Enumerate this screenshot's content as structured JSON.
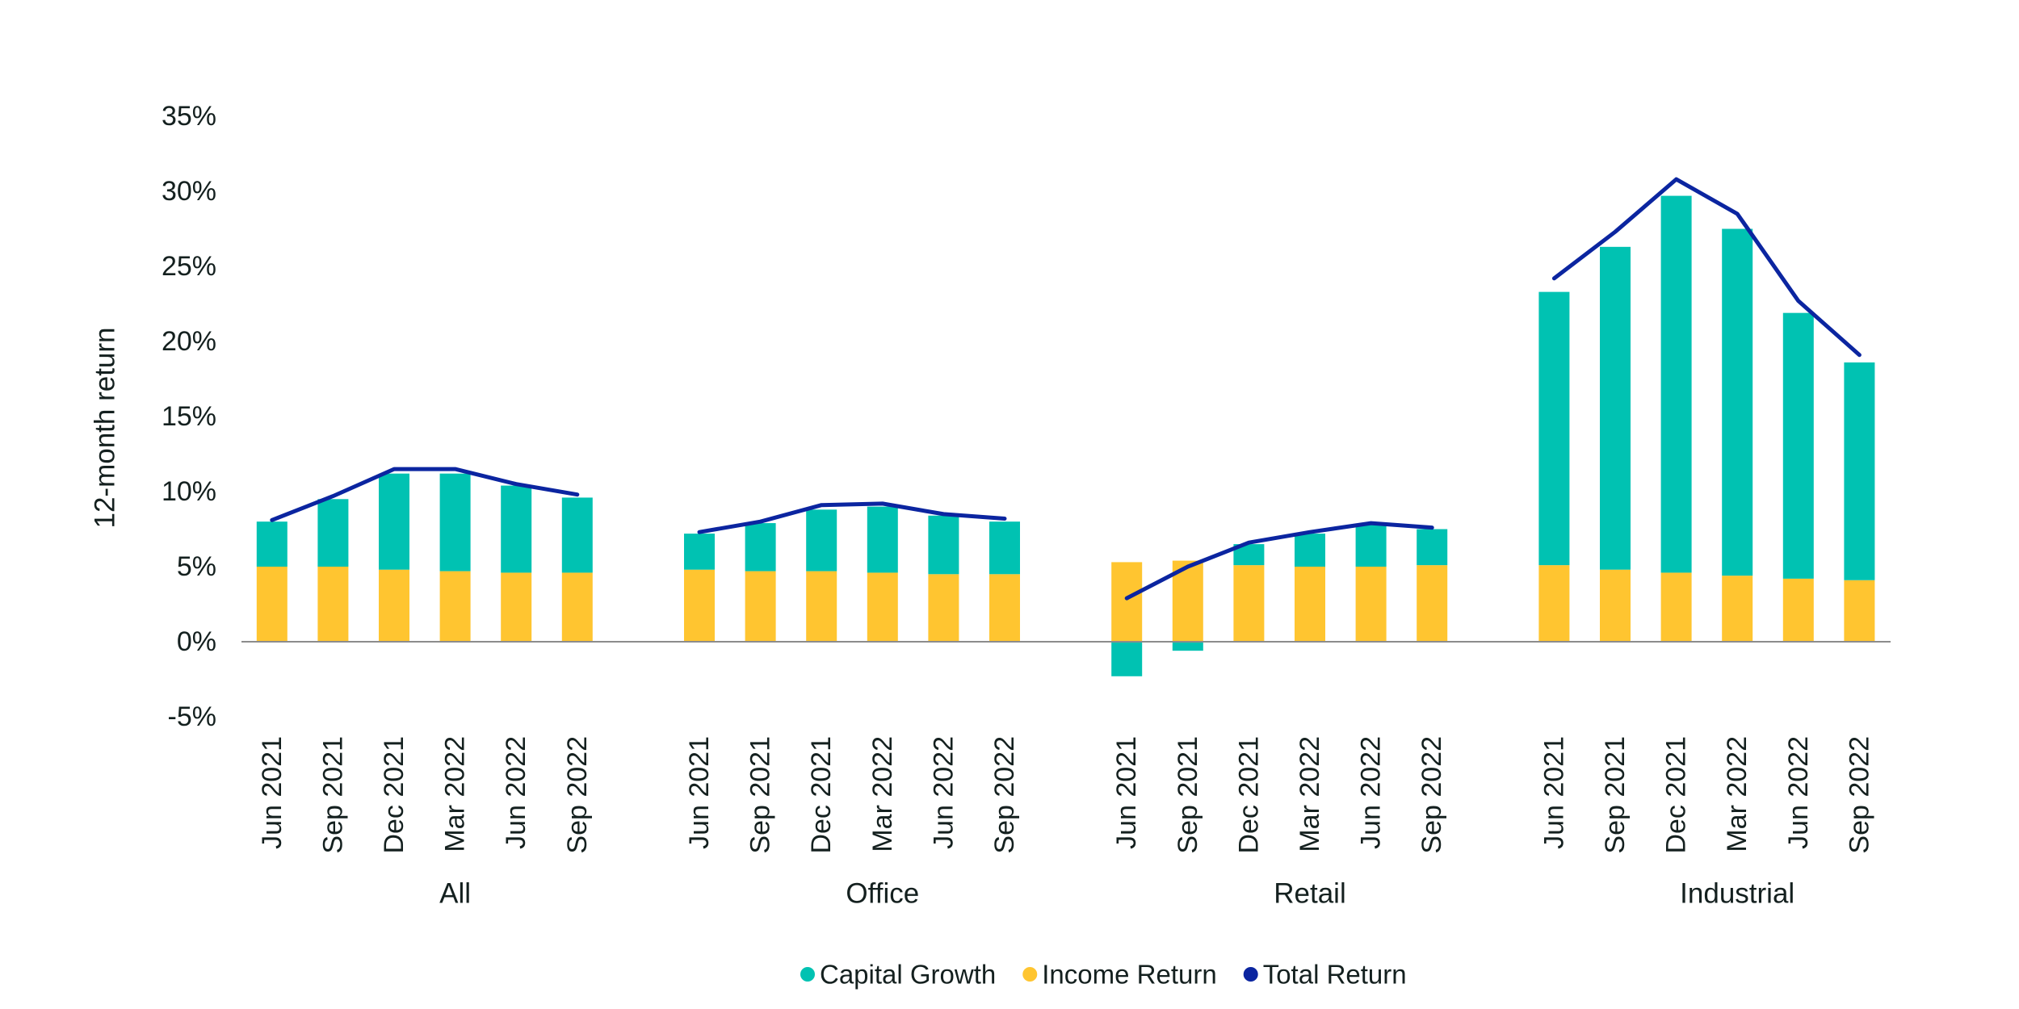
{
  "chart_data": {
    "type": "bar",
    "subtype": "stacked-bar-with-line",
    "title": "",
    "xlabel": "",
    "ylabel": "12-month return",
    "ylim": [
      -5,
      35
    ],
    "yticks": [
      -5,
      0,
      5,
      10,
      15,
      20,
      25,
      30,
      35
    ],
    "ytick_labels": [
      "-5%",
      "0%",
      "5%",
      "10%",
      "15%",
      "20%",
      "25%",
      "30%",
      "35%"
    ],
    "grid": false,
    "legend_position": "bottom-center",
    "groups": [
      {
        "name": "All",
        "categories": [
          "Jun 2021",
          "Sep 2021",
          "Dec 2021",
          "Mar 2022",
          "Jun 2022",
          "Sep 2022"
        ],
        "capital_growth": [
          3.0,
          4.5,
          6.4,
          6.5,
          5.8,
          5.0
        ],
        "income_return": [
          5.0,
          5.0,
          4.8,
          4.7,
          4.6,
          4.6
        ],
        "total_return": [
          8.1,
          9.7,
          11.5,
          11.5,
          10.5,
          9.8
        ]
      },
      {
        "name": "Office",
        "categories": [
          "Jun 2021",
          "Sep 2021",
          "Dec 2021",
          "Mar 2022",
          "Jun 2022",
          "Sep 2022"
        ],
        "capital_growth": [
          2.4,
          3.2,
          4.1,
          4.4,
          3.9,
          3.5
        ],
        "income_return": [
          4.8,
          4.7,
          4.7,
          4.6,
          4.5,
          4.5
        ],
        "total_return": [
          7.3,
          8.0,
          9.1,
          9.2,
          8.5,
          8.2
        ]
      },
      {
        "name": "Retail",
        "categories": [
          "Jun 2021",
          "Sep 2021",
          "Dec 2021",
          "Mar 2022",
          "Jun 2022",
          "Sep 2022"
        ],
        "capital_growth": [
          -2.3,
          -0.6,
          1.4,
          2.2,
          2.8,
          2.4
        ],
        "income_return": [
          5.3,
          5.4,
          5.1,
          5.0,
          5.0,
          5.1
        ],
        "total_return": [
          2.9,
          5.0,
          6.6,
          7.3,
          7.9,
          7.6
        ]
      },
      {
        "name": "Industrial",
        "categories": [
          "Jun 2021",
          "Sep 2021",
          "Dec 2021",
          "Mar 2022",
          "Jun 2022",
          "Sep 2022"
        ],
        "capital_growth": [
          18.2,
          21.5,
          25.1,
          23.1,
          17.7,
          14.5
        ],
        "income_return": [
          5.1,
          4.8,
          4.6,
          4.4,
          4.2,
          4.1
        ],
        "total_return": [
          24.2,
          27.3,
          30.8,
          28.5,
          22.7,
          19.1
        ]
      }
    ],
    "series": [
      {
        "key": "capital_growth",
        "name": "Capital Growth",
        "kind": "bar",
        "color": "#00C2B2"
      },
      {
        "key": "income_return",
        "name": "Income Return",
        "kind": "bar",
        "color": "#FFC530"
      },
      {
        "key": "total_return",
        "name": "Total Return",
        "kind": "line",
        "color": "#0B25A0"
      }
    ],
    "axis_color": "#8C8C8C"
  }
}
